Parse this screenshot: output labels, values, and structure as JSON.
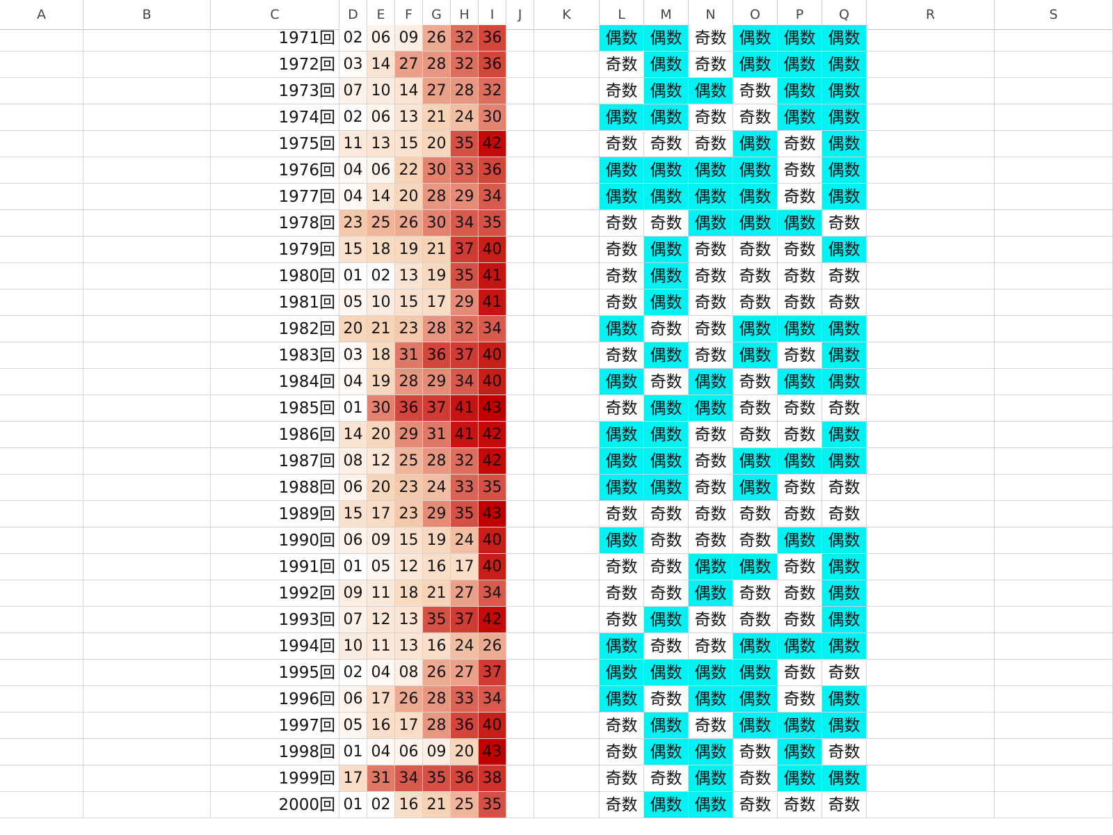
{
  "columns": [
    "A",
    "B",
    "C",
    "D",
    "E",
    "F",
    "G",
    "H",
    "I",
    "J",
    "K",
    "L",
    "M",
    "N",
    "O",
    "P",
    "Q",
    "R",
    "S"
  ],
  "rows": [
    {
      "draw": "1971回",
      "nums": [
        "02",
        "06",
        "09",
        "26",
        "32",
        "36"
      ],
      "parity": [
        "偶数",
        "偶数",
        "奇数",
        "偶数",
        "偶数",
        "偶数"
      ]
    },
    {
      "draw": "1972回",
      "nums": [
        "03",
        "14",
        "27",
        "28",
        "32",
        "36"
      ],
      "parity": [
        "奇数",
        "偶数",
        "奇数",
        "偶数",
        "偶数",
        "偶数"
      ]
    },
    {
      "draw": "1973回",
      "nums": [
        "07",
        "10",
        "14",
        "27",
        "28",
        "32"
      ],
      "parity": [
        "奇数",
        "偶数",
        "偶数",
        "奇数",
        "偶数",
        "偶数"
      ]
    },
    {
      "draw": "1974回",
      "nums": [
        "02",
        "06",
        "13",
        "21",
        "24",
        "30"
      ],
      "parity": [
        "偶数",
        "偶数",
        "奇数",
        "奇数",
        "偶数",
        "偶数"
      ]
    },
    {
      "draw": "1975回",
      "nums": [
        "11",
        "13",
        "15",
        "20",
        "35",
        "42"
      ],
      "parity": [
        "奇数",
        "奇数",
        "奇数",
        "偶数",
        "奇数",
        "偶数"
      ]
    },
    {
      "draw": "1976回",
      "nums": [
        "04",
        "06",
        "22",
        "30",
        "33",
        "36"
      ],
      "parity": [
        "偶数",
        "偶数",
        "偶数",
        "偶数",
        "奇数",
        "偶数"
      ]
    },
    {
      "draw": "1977回",
      "nums": [
        "04",
        "14",
        "20",
        "28",
        "29",
        "34"
      ],
      "parity": [
        "偶数",
        "偶数",
        "偶数",
        "偶数",
        "奇数",
        "偶数"
      ]
    },
    {
      "draw": "1978回",
      "nums": [
        "23",
        "25",
        "26",
        "30",
        "34",
        "35"
      ],
      "parity": [
        "奇数",
        "奇数",
        "偶数",
        "偶数",
        "偶数",
        "奇数"
      ]
    },
    {
      "draw": "1979回",
      "nums": [
        "15",
        "18",
        "19",
        "21",
        "37",
        "40"
      ],
      "parity": [
        "奇数",
        "偶数",
        "奇数",
        "奇数",
        "奇数",
        "偶数"
      ]
    },
    {
      "draw": "1980回",
      "nums": [
        "01",
        "02",
        "13",
        "19",
        "35",
        "41"
      ],
      "parity": [
        "奇数",
        "偶数",
        "奇数",
        "奇数",
        "奇数",
        "奇数"
      ]
    },
    {
      "draw": "1981回",
      "nums": [
        "05",
        "10",
        "15",
        "17",
        "29",
        "41"
      ],
      "parity": [
        "奇数",
        "偶数",
        "奇数",
        "奇数",
        "奇数",
        "奇数"
      ]
    },
    {
      "draw": "1982回",
      "nums": [
        "20",
        "21",
        "23",
        "28",
        "32",
        "34"
      ],
      "parity": [
        "偶数",
        "奇数",
        "奇数",
        "偶数",
        "偶数",
        "偶数"
      ]
    },
    {
      "draw": "1983回",
      "nums": [
        "03",
        "18",
        "31",
        "36",
        "37",
        "40"
      ],
      "parity": [
        "奇数",
        "偶数",
        "奇数",
        "偶数",
        "奇数",
        "偶数"
      ]
    },
    {
      "draw": "1984回",
      "nums": [
        "04",
        "19",
        "28",
        "29",
        "34",
        "40"
      ],
      "parity": [
        "偶数",
        "奇数",
        "偶数",
        "奇数",
        "偶数",
        "偶数"
      ]
    },
    {
      "draw": "1985回",
      "nums": [
        "01",
        "30",
        "36",
        "37",
        "41",
        "43"
      ],
      "parity": [
        "奇数",
        "偶数",
        "偶数",
        "奇数",
        "奇数",
        "奇数"
      ]
    },
    {
      "draw": "1986回",
      "nums": [
        "14",
        "20",
        "29",
        "31",
        "41",
        "42"
      ],
      "parity": [
        "偶数",
        "偶数",
        "奇数",
        "奇数",
        "奇数",
        "偶数"
      ]
    },
    {
      "draw": "1987回",
      "nums": [
        "08",
        "12",
        "25",
        "28",
        "32",
        "42"
      ],
      "parity": [
        "偶数",
        "偶数",
        "奇数",
        "偶数",
        "偶数",
        "偶数"
      ]
    },
    {
      "draw": "1988回",
      "nums": [
        "06",
        "20",
        "23",
        "24",
        "33",
        "35"
      ],
      "parity": [
        "偶数",
        "偶数",
        "奇数",
        "偶数",
        "奇数",
        "奇数"
      ]
    },
    {
      "draw": "1989回",
      "nums": [
        "15",
        "17",
        "23",
        "29",
        "35",
        "43"
      ],
      "parity": [
        "奇数",
        "奇数",
        "奇数",
        "奇数",
        "奇数",
        "奇数"
      ]
    },
    {
      "draw": "1990回",
      "nums": [
        "06",
        "09",
        "15",
        "19",
        "24",
        "40"
      ],
      "parity": [
        "偶数",
        "奇数",
        "奇数",
        "奇数",
        "偶数",
        "偶数"
      ]
    },
    {
      "draw": "1991回",
      "nums": [
        "01",
        "05",
        "12",
        "16",
        "17",
        "40"
      ],
      "parity": [
        "奇数",
        "奇数",
        "偶数",
        "偶数",
        "奇数",
        "偶数"
      ]
    },
    {
      "draw": "1992回",
      "nums": [
        "09",
        "11",
        "18",
        "21",
        "27",
        "34"
      ],
      "parity": [
        "奇数",
        "奇数",
        "偶数",
        "奇数",
        "奇数",
        "偶数"
      ]
    },
    {
      "draw": "1993回",
      "nums": [
        "07",
        "12",
        "13",
        "35",
        "37",
        "42"
      ],
      "parity": [
        "奇数",
        "偶数",
        "奇数",
        "奇数",
        "奇数",
        "偶数"
      ]
    },
    {
      "draw": "1994回",
      "nums": [
        "10",
        "11",
        "13",
        "16",
        "24",
        "26"
      ],
      "parity": [
        "偶数",
        "奇数",
        "奇数",
        "偶数",
        "偶数",
        "偶数"
      ]
    },
    {
      "draw": "1995回",
      "nums": [
        "02",
        "04",
        "08",
        "26",
        "27",
        "37"
      ],
      "parity": [
        "偶数",
        "偶数",
        "偶数",
        "偶数",
        "奇数",
        "奇数"
      ]
    },
    {
      "draw": "1996回",
      "nums": [
        "06",
        "17",
        "26",
        "28",
        "33",
        "34"
      ],
      "parity": [
        "偶数",
        "奇数",
        "偶数",
        "偶数",
        "奇数",
        "偶数"
      ]
    },
    {
      "draw": "1997回",
      "nums": [
        "05",
        "16",
        "17",
        "28",
        "36",
        "40"
      ],
      "parity": [
        "奇数",
        "偶数",
        "奇数",
        "偶数",
        "偶数",
        "偶数"
      ]
    },
    {
      "draw": "1998回",
      "nums": [
        "01",
        "04",
        "06",
        "09",
        "20",
        "43"
      ],
      "parity": [
        "奇数",
        "偶数",
        "偶数",
        "奇数",
        "偶数",
        "奇数"
      ]
    },
    {
      "draw": "1999回",
      "nums": [
        "17",
        "31",
        "34",
        "35",
        "36",
        "38"
      ],
      "parity": [
        "奇数",
        "奇数",
        "偶数",
        "奇数",
        "偶数",
        "偶数"
      ]
    },
    {
      "draw": "2000回",
      "nums": [
        "01",
        "02",
        "16",
        "21",
        "25",
        "35"
      ],
      "parity": [
        "奇数",
        "偶数",
        "偶数",
        "奇数",
        "奇数",
        "奇数"
      ]
    }
  ],
  "colors": {
    "even_fill": "#00f2f2",
    "odd_fill": "#ffffff",
    "heat_low": "#ffffff",
    "heat_mid": "#f7d2b4",
    "heat_high": "#c00000",
    "grid_line": "#d4d4d4"
  }
}
